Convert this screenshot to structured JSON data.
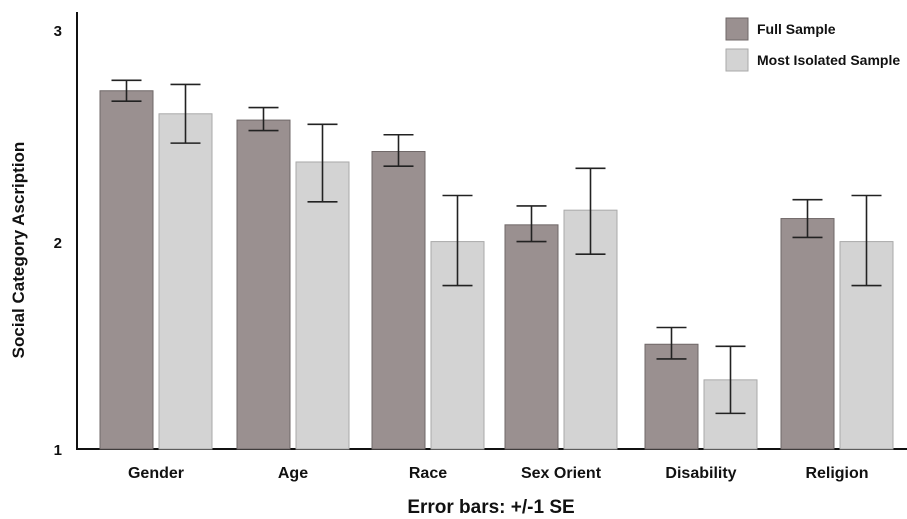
{
  "chart_data": {
    "type": "bar",
    "categories": [
      "Gender",
      "Age",
      "Race",
      "Sex Orient",
      "Disability",
      "Religion"
    ],
    "series": [
      {
        "name": "Full Sample",
        "values": [
          2.71,
          2.57,
          2.42,
          2.07,
          1.5,
          2.1
        ],
        "error_low": [
          2.66,
          2.52,
          2.35,
          1.99,
          1.43,
          2.01
        ],
        "error_high": [
          2.76,
          2.63,
          2.5,
          2.16,
          1.58,
          2.19
        ],
        "color": "#9a9090"
      },
      {
        "name": "Most Isolated Sample",
        "values": [
          2.6,
          2.37,
          1.99,
          2.14,
          1.33,
          1.99
        ],
        "error_low": [
          2.46,
          2.18,
          1.78,
          1.93,
          1.17,
          1.78
        ],
        "error_high": [
          2.74,
          2.55,
          2.21,
          2.34,
          1.49,
          2.21
        ],
        "color": "#d3d3d3"
      }
    ],
    "title": "",
    "xlabel": "Error bars: +/-1 SE",
    "ylabel": "Social Category Ascription",
    "ylim": [
      1,
      3
    ],
    "yticks": [
      "1",
      "2",
      "3"
    ],
    "grid": false,
    "legend_position": "top-right"
  }
}
